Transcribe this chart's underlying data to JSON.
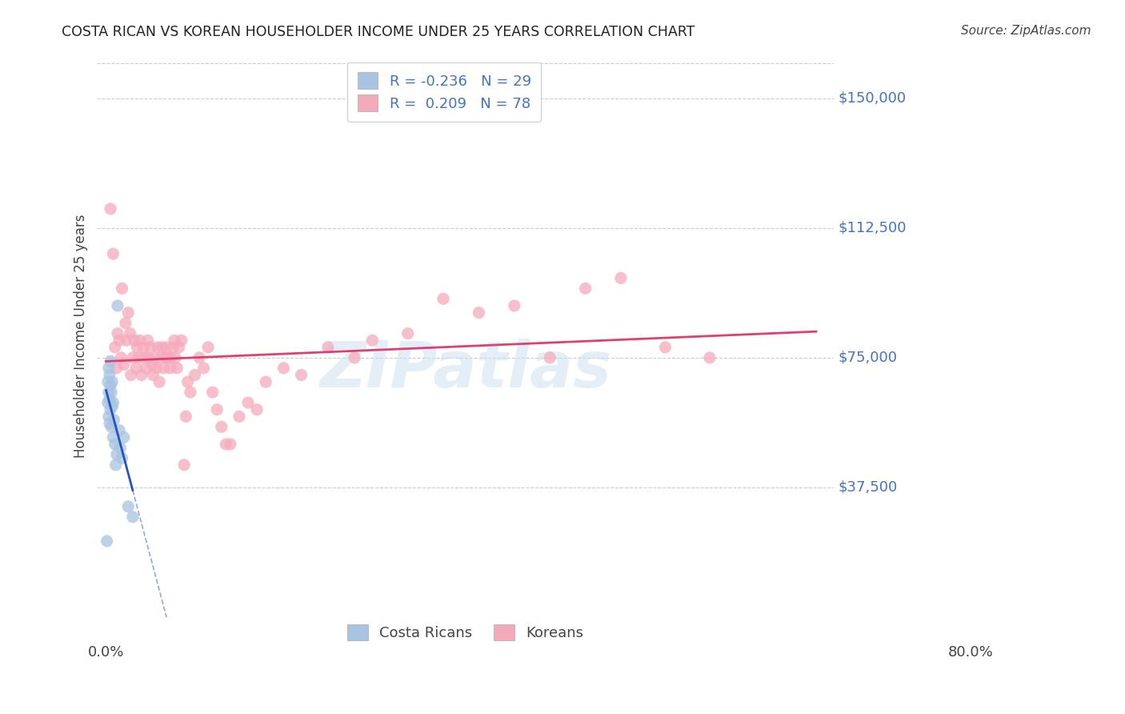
{
  "title": "COSTA RICAN VS KOREAN HOUSEHOLDER INCOME UNDER 25 YEARS CORRELATION CHART",
  "source": "Source: ZipAtlas.com",
  "ylabel": "Householder Income Under 25 years",
  "ytick_labels": [
    "$37,500",
    "$75,000",
    "$112,500",
    "$150,000"
  ],
  "ytick_values": [
    37500,
    75000,
    112500,
    150000
  ],
  "ymin": 0,
  "ymax": 162500,
  "xmin": 0.0,
  "xmax": 0.8,
  "legend_cr": "R = -0.236   N = 29",
  "legend_ko": "R =  0.209   N = 78",
  "cr_color": "#a8c4e0",
  "ko_color": "#f5aabc",
  "cr_line_solid_color": "#2255bb",
  "ko_line_color": "#e04070",
  "watermark_text": "ZIPatlas",
  "costa_ricans_x": [
    0.001,
    0.002,
    0.002,
    0.003,
    0.003,
    0.003,
    0.004,
    0.004,
    0.004,
    0.005,
    0.005,
    0.005,
    0.006,
    0.006,
    0.007,
    0.007,
    0.008,
    0.008,
    0.009,
    0.01,
    0.011,
    0.012,
    0.013,
    0.015,
    0.016,
    0.018,
    0.02,
    0.025,
    0.03
  ],
  "costa_ricans_y": [
    22000,
    62000,
    68000,
    58000,
    65000,
    72000,
    56000,
    63000,
    70000,
    60000,
    67000,
    74000,
    55000,
    65000,
    61000,
    68000,
    52000,
    62000,
    57000,
    50000,
    44000,
    47000,
    90000,
    54000,
    49000,
    46000,
    52000,
    32000,
    29000
  ],
  "koreans_x": [
    0.005,
    0.008,
    0.01,
    0.012,
    0.013,
    0.015,
    0.017,
    0.018,
    0.02,
    0.022,
    0.023,
    0.025,
    0.027,
    0.028,
    0.03,
    0.032,
    0.034,
    0.035,
    0.037,
    0.038,
    0.04,
    0.042,
    0.043,
    0.045,
    0.047,
    0.048,
    0.05,
    0.052,
    0.053,
    0.055,
    0.057,
    0.058,
    0.06,
    0.062,
    0.063,
    0.065,
    0.067,
    0.068,
    0.07,
    0.072,
    0.073,
    0.075,
    0.077,
    0.078,
    0.08,
    0.082,
    0.085,
    0.088,
    0.09,
    0.092,
    0.095,
    0.1,
    0.105,
    0.11,
    0.115,
    0.12,
    0.125,
    0.13,
    0.135,
    0.14,
    0.15,
    0.16,
    0.17,
    0.18,
    0.2,
    0.22,
    0.25,
    0.28,
    0.3,
    0.34,
    0.38,
    0.42,
    0.46,
    0.5,
    0.54,
    0.58,
    0.63,
    0.68
  ],
  "koreans_y": [
    118000,
    105000,
    78000,
    72000,
    82000,
    80000,
    75000,
    95000,
    73000,
    85000,
    80000,
    88000,
    82000,
    70000,
    75000,
    80000,
    72000,
    78000,
    75000,
    80000,
    70000,
    78000,
    75000,
    72000,
    80000,
    75000,
    78000,
    73000,
    70000,
    75000,
    72000,
    78000,
    68000,
    75000,
    78000,
    72000,
    75000,
    78000,
    75000,
    72000,
    75000,
    78000,
    80000,
    75000,
    72000,
    78000,
    80000,
    44000,
    58000,
    68000,
    65000,
    70000,
    75000,
    72000,
    78000,
    65000,
    60000,
    55000,
    50000,
    50000,
    58000,
    62000,
    60000,
    68000,
    72000,
    70000,
    78000,
    75000,
    80000,
    82000,
    92000,
    88000,
    90000,
    75000,
    95000,
    98000,
    78000,
    75000
  ]
}
